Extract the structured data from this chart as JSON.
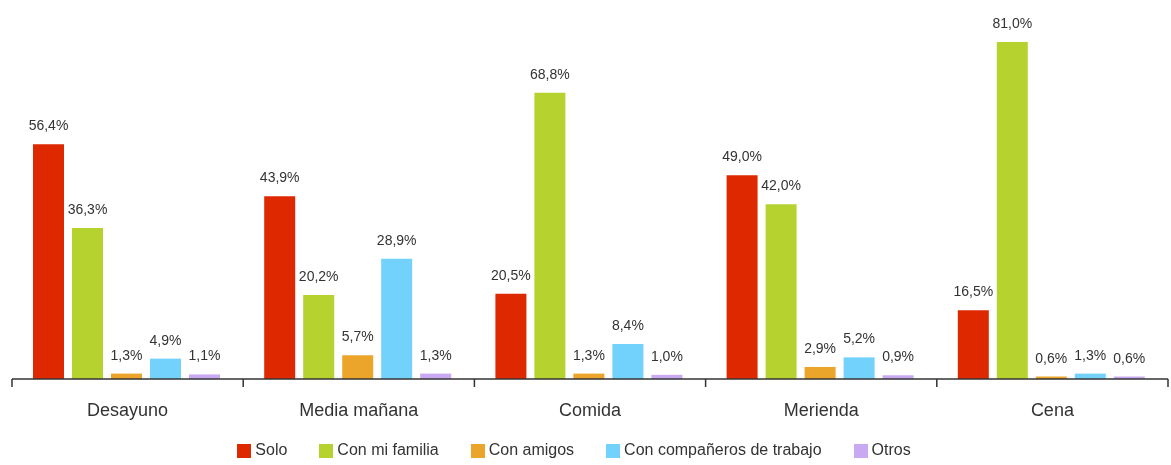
{
  "chart_data": {
    "type": "bar",
    "categories": [
      "Desayuno",
      "Media mañana",
      "Comida",
      "Merienda",
      "Cena"
    ],
    "series": [
      {
        "name": "Solo",
        "color": "#de2900",
        "values": [
          56.4,
          43.9,
          20.5,
          49.0,
          16.5
        ],
        "value_labels": [
          "56,4%",
          "43,9%",
          "20,5%",
          "49,0%",
          "16,5%"
        ]
      },
      {
        "name": "Con mi familia",
        "color": "#b5d22f",
        "values": [
          36.3,
          20.2,
          68.8,
          42.0,
          81.0
        ],
        "value_labels": [
          "36,3%",
          "20,2%",
          "68,8%",
          "42,0%",
          "81,0%"
        ]
      },
      {
        "name": "Con amigos",
        "color": "#eba52a",
        "values": [
          1.3,
          5.7,
          1.3,
          2.9,
          0.6
        ],
        "value_labels": [
          "1,3%",
          "5,7%",
          "1,3%",
          "2,9%",
          "0,6%"
        ]
      },
      {
        "name": "Con compañeros de trabajo",
        "color": "#72d2fb",
        "values": [
          4.9,
          28.9,
          8.4,
          5.2,
          1.3
        ],
        "value_labels": [
          "4,9%",
          "28,9%",
          "8,4%",
          "5,2%",
          "1,3%"
        ]
      },
      {
        "name": "Otros",
        "color": "#c8a9f2",
        "values": [
          1.1,
          1.3,
          1.0,
          0.9,
          0.6
        ],
        "value_labels": [
          "1,1%",
          "1,3%",
          "1,0%",
          "0,9%",
          "0,6%"
        ]
      }
    ],
    "legend": "bottom",
    "grid": false
  }
}
